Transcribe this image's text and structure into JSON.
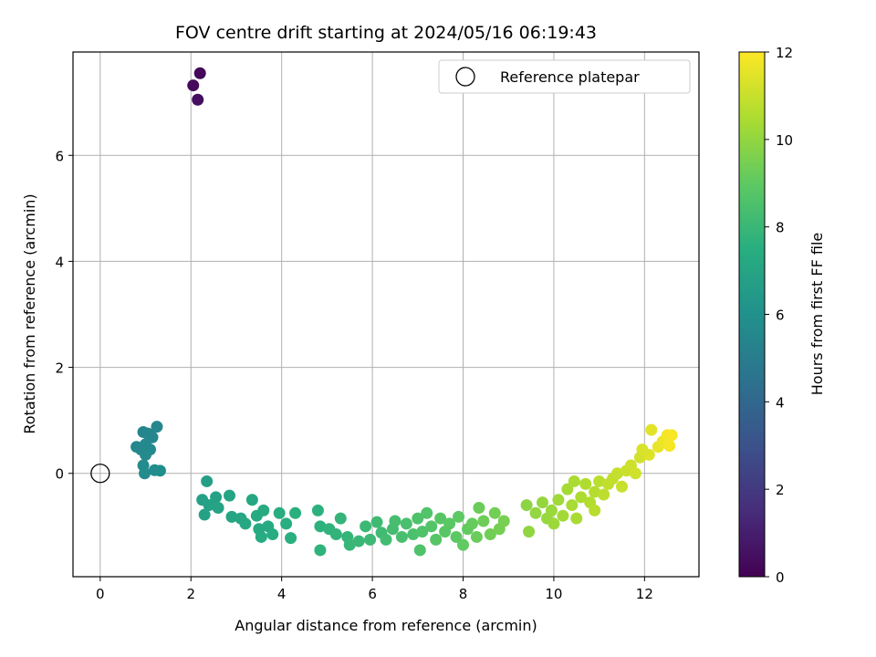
{
  "chart_data": {
    "type": "scatter",
    "title": "FOV centre drift starting at 2024/05/16 06:19:43",
    "xlabel": "Angular distance from reference (arcmin)",
    "ylabel": "Rotation from reference (arcmin)",
    "xlim": [
      -0.6,
      13.2
    ],
    "ylim": [
      -1.95,
      7.95
    ],
    "xticks": [
      0,
      2,
      4,
      6,
      8,
      10,
      12
    ],
    "yticks": [
      0,
      2,
      4,
      6
    ],
    "grid": true,
    "legend": {
      "label": "Reference platepar",
      "placement": "top-right"
    },
    "reference_point": {
      "x": 0,
      "y": 0
    },
    "colorbar": {
      "label": "Hours from first FF file",
      "range": [
        0,
        12
      ],
      "ticks": [
        0,
        2,
        4,
        6,
        8,
        10,
        12
      ],
      "colormap": "viridis"
    },
    "series": [
      {
        "points": [
          [
            2.2,
            7.55,
            0.2
          ],
          [
            2.05,
            7.32,
            0.3
          ],
          [
            2.15,
            7.05,
            0.45
          ],
          [
            0.95,
            0.78,
            5.4
          ],
          [
            1.05,
            0.75,
            5.45
          ],
          [
            1.25,
            0.88,
            5.5
          ],
          [
            0.8,
            0.5,
            5.5
          ],
          [
            0.9,
            0.45,
            5.55
          ],
          [
            1.1,
            0.45,
            5.6
          ],
          [
            1.0,
            0.35,
            5.65
          ],
          [
            0.95,
            0.15,
            5.7
          ],
          [
            0.98,
            0.0,
            5.75
          ],
          [
            1.2,
            0.06,
            5.8
          ],
          [
            1.32,
            0.05,
            5.85
          ],
          [
            1.0,
            0.55,
            5.6
          ],
          [
            1.15,
            0.68,
            5.5
          ],
          [
            2.35,
            -0.15,
            6.7
          ],
          [
            2.25,
            -0.5,
            6.8
          ],
          [
            2.4,
            -0.6,
            6.85
          ],
          [
            2.3,
            -0.78,
            6.9
          ],
          [
            2.55,
            -0.45,
            6.9
          ],
          [
            2.6,
            -0.65,
            6.95
          ],
          [
            2.85,
            -0.42,
            7.0
          ],
          [
            2.9,
            -0.82,
            7.05
          ],
          [
            3.1,
            -0.85,
            7.1
          ],
          [
            3.35,
            -0.5,
            7.15
          ],
          [
            3.2,
            -0.95,
            7.2
          ],
          [
            3.5,
            -1.05,
            7.25
          ],
          [
            3.45,
            -0.8,
            7.25
          ],
          [
            3.6,
            -0.7,
            7.3
          ],
          [
            3.7,
            -1.0,
            7.3
          ],
          [
            3.55,
            -1.2,
            7.35
          ],
          [
            3.8,
            -1.15,
            7.4
          ],
          [
            3.95,
            -0.75,
            7.45
          ],
          [
            4.1,
            -0.95,
            7.5
          ],
          [
            4.2,
            -1.22,
            7.55
          ],
          [
            4.3,
            -0.75,
            7.55
          ],
          [
            4.8,
            -0.7,
            7.6
          ],
          [
            4.85,
            -1.0,
            7.65
          ],
          [
            4.85,
            -1.45,
            7.7
          ],
          [
            5.05,
            -1.05,
            7.75
          ],
          [
            5.2,
            -1.15,
            7.8
          ],
          [
            5.3,
            -0.85,
            7.85
          ],
          [
            5.45,
            -1.2,
            7.9
          ],
          [
            5.5,
            -1.35,
            7.95
          ],
          [
            5.7,
            -1.28,
            8.0
          ],
          [
            5.85,
            -1.0,
            8.05
          ],
          [
            5.95,
            -1.25,
            8.1
          ],
          [
            6.1,
            -0.92,
            8.15
          ],
          [
            6.2,
            -1.12,
            8.2
          ],
          [
            6.3,
            -1.25,
            8.25
          ],
          [
            6.45,
            -1.05,
            8.3
          ],
          [
            6.5,
            -0.9,
            8.35
          ],
          [
            6.65,
            -1.2,
            8.4
          ],
          [
            6.75,
            -0.95,
            8.45
          ],
          [
            6.9,
            -1.15,
            8.5
          ],
          [
            7.0,
            -0.85,
            8.55
          ],
          [
            7.05,
            -1.45,
            8.6
          ],
          [
            7.1,
            -1.1,
            8.6
          ],
          [
            7.2,
            -0.75,
            8.65
          ],
          [
            7.3,
            -1.0,
            8.7
          ],
          [
            7.4,
            -1.25,
            8.75
          ],
          [
            7.5,
            -0.85,
            8.8
          ],
          [
            7.6,
            -1.1,
            8.85
          ],
          [
            7.7,
            -0.95,
            8.9
          ],
          [
            7.85,
            -1.2,
            8.95
          ],
          [
            7.9,
            -0.82,
            9.0
          ],
          [
            8.0,
            -1.35,
            9.05
          ],
          [
            8.1,
            -1.05,
            9.1
          ],
          [
            8.2,
            -0.95,
            9.15
          ],
          [
            8.3,
            -1.2,
            9.2
          ],
          [
            8.35,
            -0.65,
            9.25
          ],
          [
            8.45,
            -0.9,
            9.3
          ],
          [
            8.6,
            -1.15,
            9.35
          ],
          [
            8.7,
            -0.75,
            9.4
          ],
          [
            8.8,
            -1.05,
            9.45
          ],
          [
            8.9,
            -0.9,
            9.5
          ],
          [
            9.4,
            -0.6,
            9.9
          ],
          [
            9.45,
            -1.1,
            9.95
          ],
          [
            9.6,
            -0.75,
            10.0
          ],
          [
            9.75,
            -0.55,
            10.05
          ],
          [
            9.85,
            -0.85,
            10.1
          ],
          [
            9.95,
            -0.7,
            10.15
          ],
          [
            10.0,
            -0.95,
            10.2
          ],
          [
            10.1,
            -0.5,
            10.25
          ],
          [
            10.2,
            -0.8,
            10.3
          ],
          [
            10.3,
            -0.3,
            10.35
          ],
          [
            10.4,
            -0.6,
            10.4
          ],
          [
            10.45,
            -0.15,
            10.45
          ],
          [
            10.5,
            -0.85,
            10.45
          ],
          [
            10.6,
            -0.45,
            10.5
          ],
          [
            10.7,
            -0.2,
            10.55
          ],
          [
            10.8,
            -0.55,
            10.6
          ],
          [
            10.9,
            -0.35,
            10.65
          ],
          [
            10.9,
            -0.7,
            10.7
          ],
          [
            11.0,
            -0.15,
            10.75
          ],
          [
            11.1,
            -0.4,
            10.8
          ],
          [
            11.2,
            -0.2,
            10.85
          ],
          [
            11.3,
            -0.1,
            10.9
          ],
          [
            11.4,
            0.0,
            10.95
          ],
          [
            11.5,
            -0.25,
            11.0
          ],
          [
            11.6,
            0.05,
            11.05
          ],
          [
            11.7,
            0.15,
            11.1
          ],
          [
            11.8,
            0.0,
            11.15
          ],
          [
            11.9,
            0.3,
            11.2
          ],
          [
            11.95,
            0.45,
            11.3
          ],
          [
            12.1,
            0.35,
            11.4
          ],
          [
            12.15,
            0.82,
            11.5
          ],
          [
            12.3,
            0.5,
            11.6
          ],
          [
            12.4,
            0.6,
            11.7
          ],
          [
            12.5,
            0.72,
            11.8
          ],
          [
            12.55,
            0.52,
            11.85
          ],
          [
            12.6,
            0.72,
            11.9
          ]
        ]
      }
    ]
  }
}
